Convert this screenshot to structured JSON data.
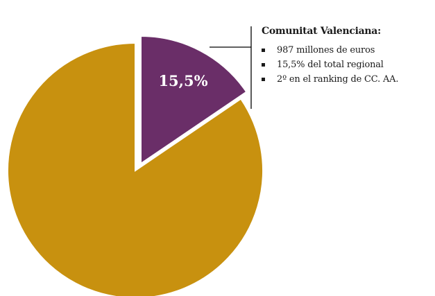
{
  "colors": {
    "highlight": "#6a2e68",
    "rest": "#c8910f",
    "border": "#ffffff",
    "leader": "#000000"
  },
  "chart_data": {
    "type": "pie",
    "values": [
      15.5,
      84.5
    ],
    "labels": [
      "15,5%",
      ""
    ],
    "exploded_slice": 0
  },
  "callout": {
    "title": "Comunitat Valenciana:",
    "items": [
      "987 millones de euros",
      "15,5% del total regional",
      "2º en el ranking de CC. AA."
    ]
  }
}
